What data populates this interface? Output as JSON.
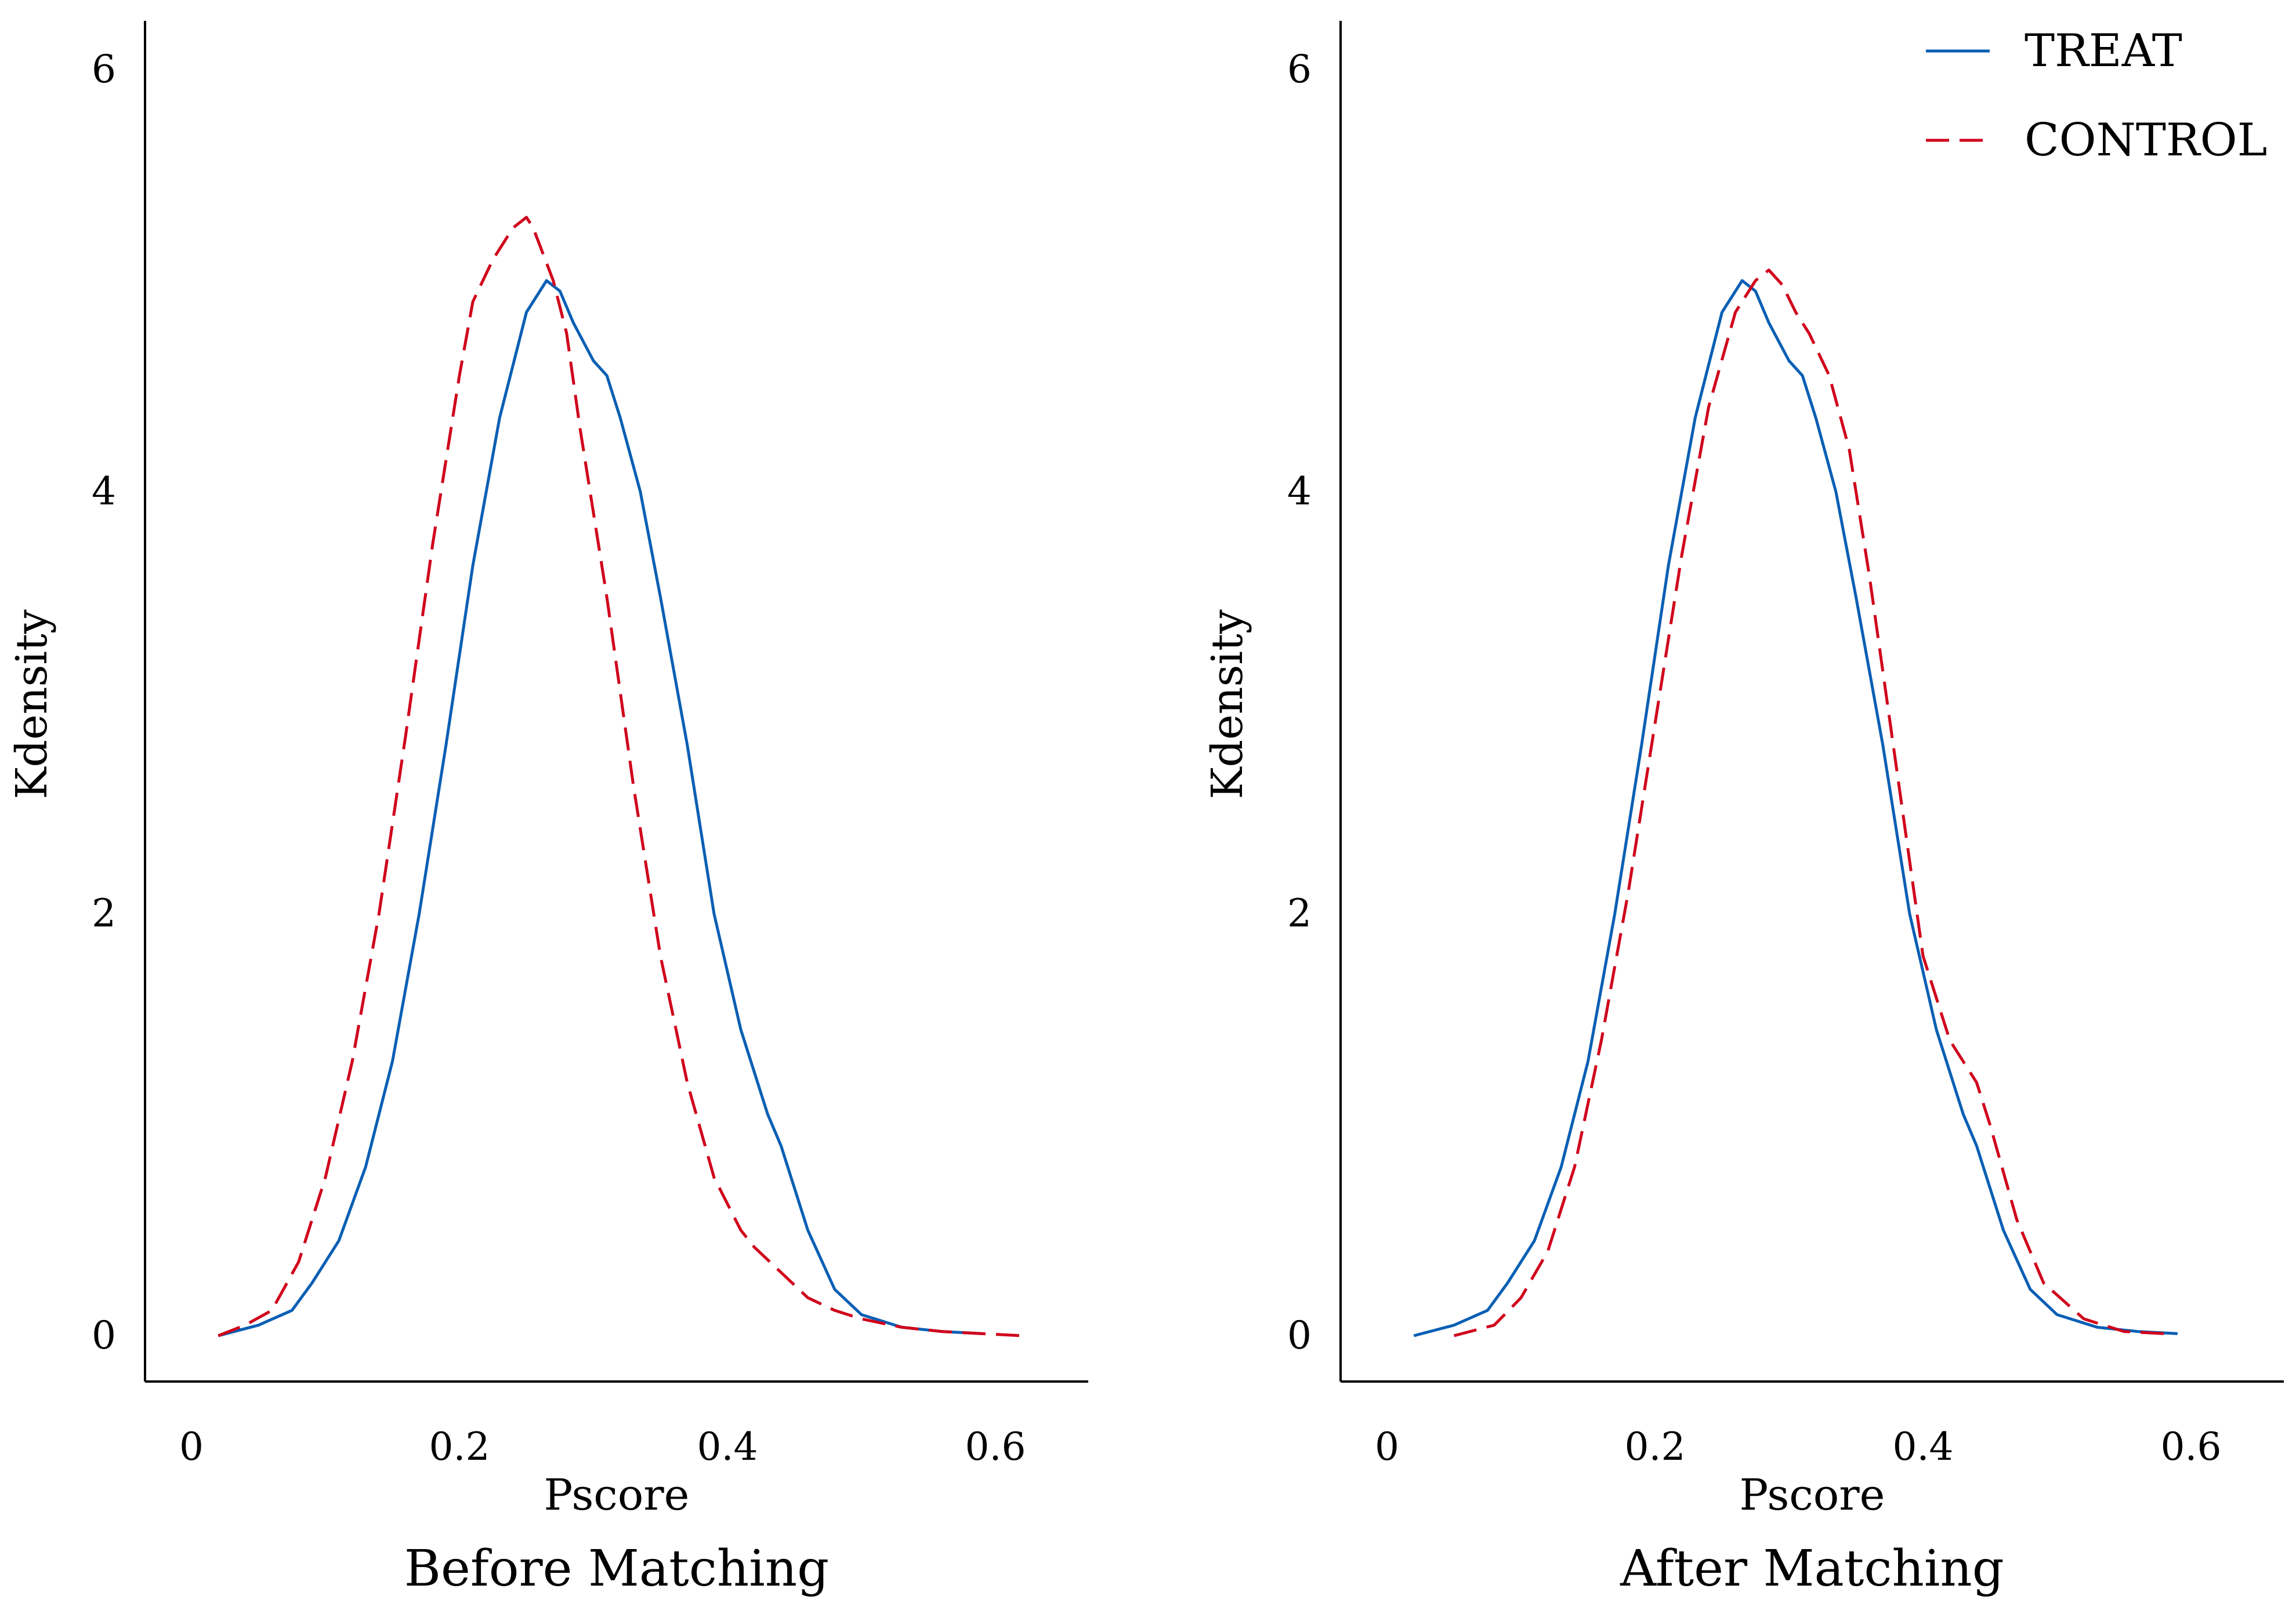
{
  "chart_data": [
    {
      "type": "line",
      "title": "Before Matching",
      "xlabel": "Pscore",
      "ylabel": "Kdensity",
      "xlim": [
        -0.03,
        0.67
      ],
      "ylim": [
        -0.2,
        6.25
      ],
      "xticks": [
        {
          "value": 0,
          "label": "0"
        },
        {
          "value": 0.2,
          "label": "0.2"
        },
        {
          "value": 0.4,
          "label": "0.4"
        },
        {
          "value": 0.6,
          "label": "0.6"
        }
      ],
      "yticks": [
        {
          "value": 0,
          "label": "0"
        },
        {
          "value": 2,
          "label": "2"
        },
        {
          "value": 4,
          "label": "4"
        },
        {
          "value": 6,
          "label": "6"
        }
      ],
      "series": [
        {
          "name": "TREAT",
          "color": "#0a5fb4",
          "dash": "solid",
          "x": [
            0.02,
            0.05,
            0.075,
            0.09,
            0.11,
            0.13,
            0.15,
            0.17,
            0.19,
            0.21,
            0.23,
            0.25,
            0.265,
            0.275,
            0.285,
            0.3,
            0.31,
            0.32,
            0.335,
            0.35,
            0.37,
            0.39,
            0.41,
            0.43,
            0.44,
            0.46,
            0.48,
            0.5,
            0.53,
            0.56,
            0.59
          ],
          "values": [
            0.0,
            0.05,
            0.12,
            0.25,
            0.45,
            0.8,
            1.3,
            2.0,
            2.8,
            3.65,
            4.35,
            4.85,
            5.0,
            4.95,
            4.8,
            4.62,
            4.55,
            4.35,
            4.0,
            3.5,
            2.8,
            2.0,
            1.45,
            1.05,
            0.9,
            0.5,
            0.22,
            0.1,
            0.04,
            0.02,
            0.01
          ]
        },
        {
          "name": "CONTROL",
          "color": "#d0021b",
          "dash": "dashed",
          "x": [
            0.02,
            0.04,
            0.06,
            0.08,
            0.1,
            0.12,
            0.14,
            0.16,
            0.18,
            0.2,
            0.21,
            0.225,
            0.24,
            0.25,
            0.255,
            0.27,
            0.28,
            0.29,
            0.31,
            0.33,
            0.35,
            0.37,
            0.39,
            0.41,
            0.42,
            0.44,
            0.46,
            0.48,
            0.5,
            0.53,
            0.56,
            0.59,
            0.62
          ],
          "values": [
            0.0,
            0.05,
            0.12,
            0.35,
            0.75,
            1.3,
            2.0,
            2.85,
            3.75,
            4.55,
            4.9,
            5.1,
            5.25,
            5.3,
            5.25,
            5.0,
            4.75,
            4.3,
            3.5,
            2.6,
            1.8,
            1.2,
            0.75,
            0.5,
            0.42,
            0.3,
            0.18,
            0.12,
            0.08,
            0.04,
            0.02,
            0.01,
            0.0
          ]
        }
      ]
    },
    {
      "type": "line",
      "title": "After Matching",
      "xlabel": "Pscore",
      "ylabel": "Kdensity",
      "xlim": [
        -0.03,
        0.67
      ],
      "ylim": [
        -0.2,
        6.25
      ],
      "xticks": [
        {
          "value": 0,
          "label": "0"
        },
        {
          "value": 0.2,
          "label": "0.2"
        },
        {
          "value": 0.4,
          "label": "0.4"
        },
        {
          "value": 0.6,
          "label": "0.6"
        }
      ],
      "yticks": [
        {
          "value": 0,
          "label": "0"
        },
        {
          "value": 2,
          "label": "2"
        },
        {
          "value": 4,
          "label": "4"
        },
        {
          "value": 6,
          "label": "6"
        }
      ],
      "legend": {
        "placement": "top-right",
        "entries": [
          {
            "label": "TREAT",
            "color": "#0a5fb4",
            "dash": "solid"
          },
          {
            "label": "CONTROL",
            "color": "#d0021b",
            "dash": "dashed"
          }
        ]
      },
      "series": [
        {
          "name": "TREAT",
          "color": "#0a5fb4",
          "dash": "solid",
          "x": [
            0.02,
            0.05,
            0.075,
            0.09,
            0.11,
            0.13,
            0.15,
            0.17,
            0.19,
            0.21,
            0.23,
            0.25,
            0.265,
            0.275,
            0.285,
            0.3,
            0.31,
            0.32,
            0.335,
            0.35,
            0.37,
            0.39,
            0.41,
            0.43,
            0.44,
            0.46,
            0.48,
            0.5,
            0.53,
            0.56,
            0.59
          ],
          "values": [
            0.0,
            0.05,
            0.12,
            0.25,
            0.45,
            0.8,
            1.3,
            2.0,
            2.8,
            3.65,
            4.35,
            4.85,
            5.0,
            4.95,
            4.8,
            4.62,
            4.55,
            4.35,
            4.0,
            3.5,
            2.8,
            2.0,
            1.45,
            1.05,
            0.9,
            0.5,
            0.22,
            0.1,
            0.04,
            0.02,
            0.01
          ]
        },
        {
          "name": "CONTROL",
          "color": "#d0021b",
          "dash": "dashed",
          "x": [
            0.05,
            0.08,
            0.1,
            0.12,
            0.14,
            0.16,
            0.18,
            0.2,
            0.22,
            0.24,
            0.26,
            0.275,
            0.285,
            0.295,
            0.305,
            0.315,
            0.33,
            0.345,
            0.36,
            0.38,
            0.4,
            0.42,
            0.44,
            0.45,
            0.47,
            0.49,
            0.52,
            0.55,
            0.58
          ],
          "values": [
            0.0,
            0.05,
            0.18,
            0.4,
            0.8,
            1.4,
            2.1,
            2.9,
            3.7,
            4.4,
            4.85,
            5.0,
            5.05,
            4.98,
            4.85,
            4.75,
            4.55,
            4.2,
            3.6,
            2.7,
            1.8,
            1.4,
            1.2,
            1.0,
            0.55,
            0.25,
            0.08,
            0.02,
            0.01
          ]
        }
      ]
    }
  ]
}
